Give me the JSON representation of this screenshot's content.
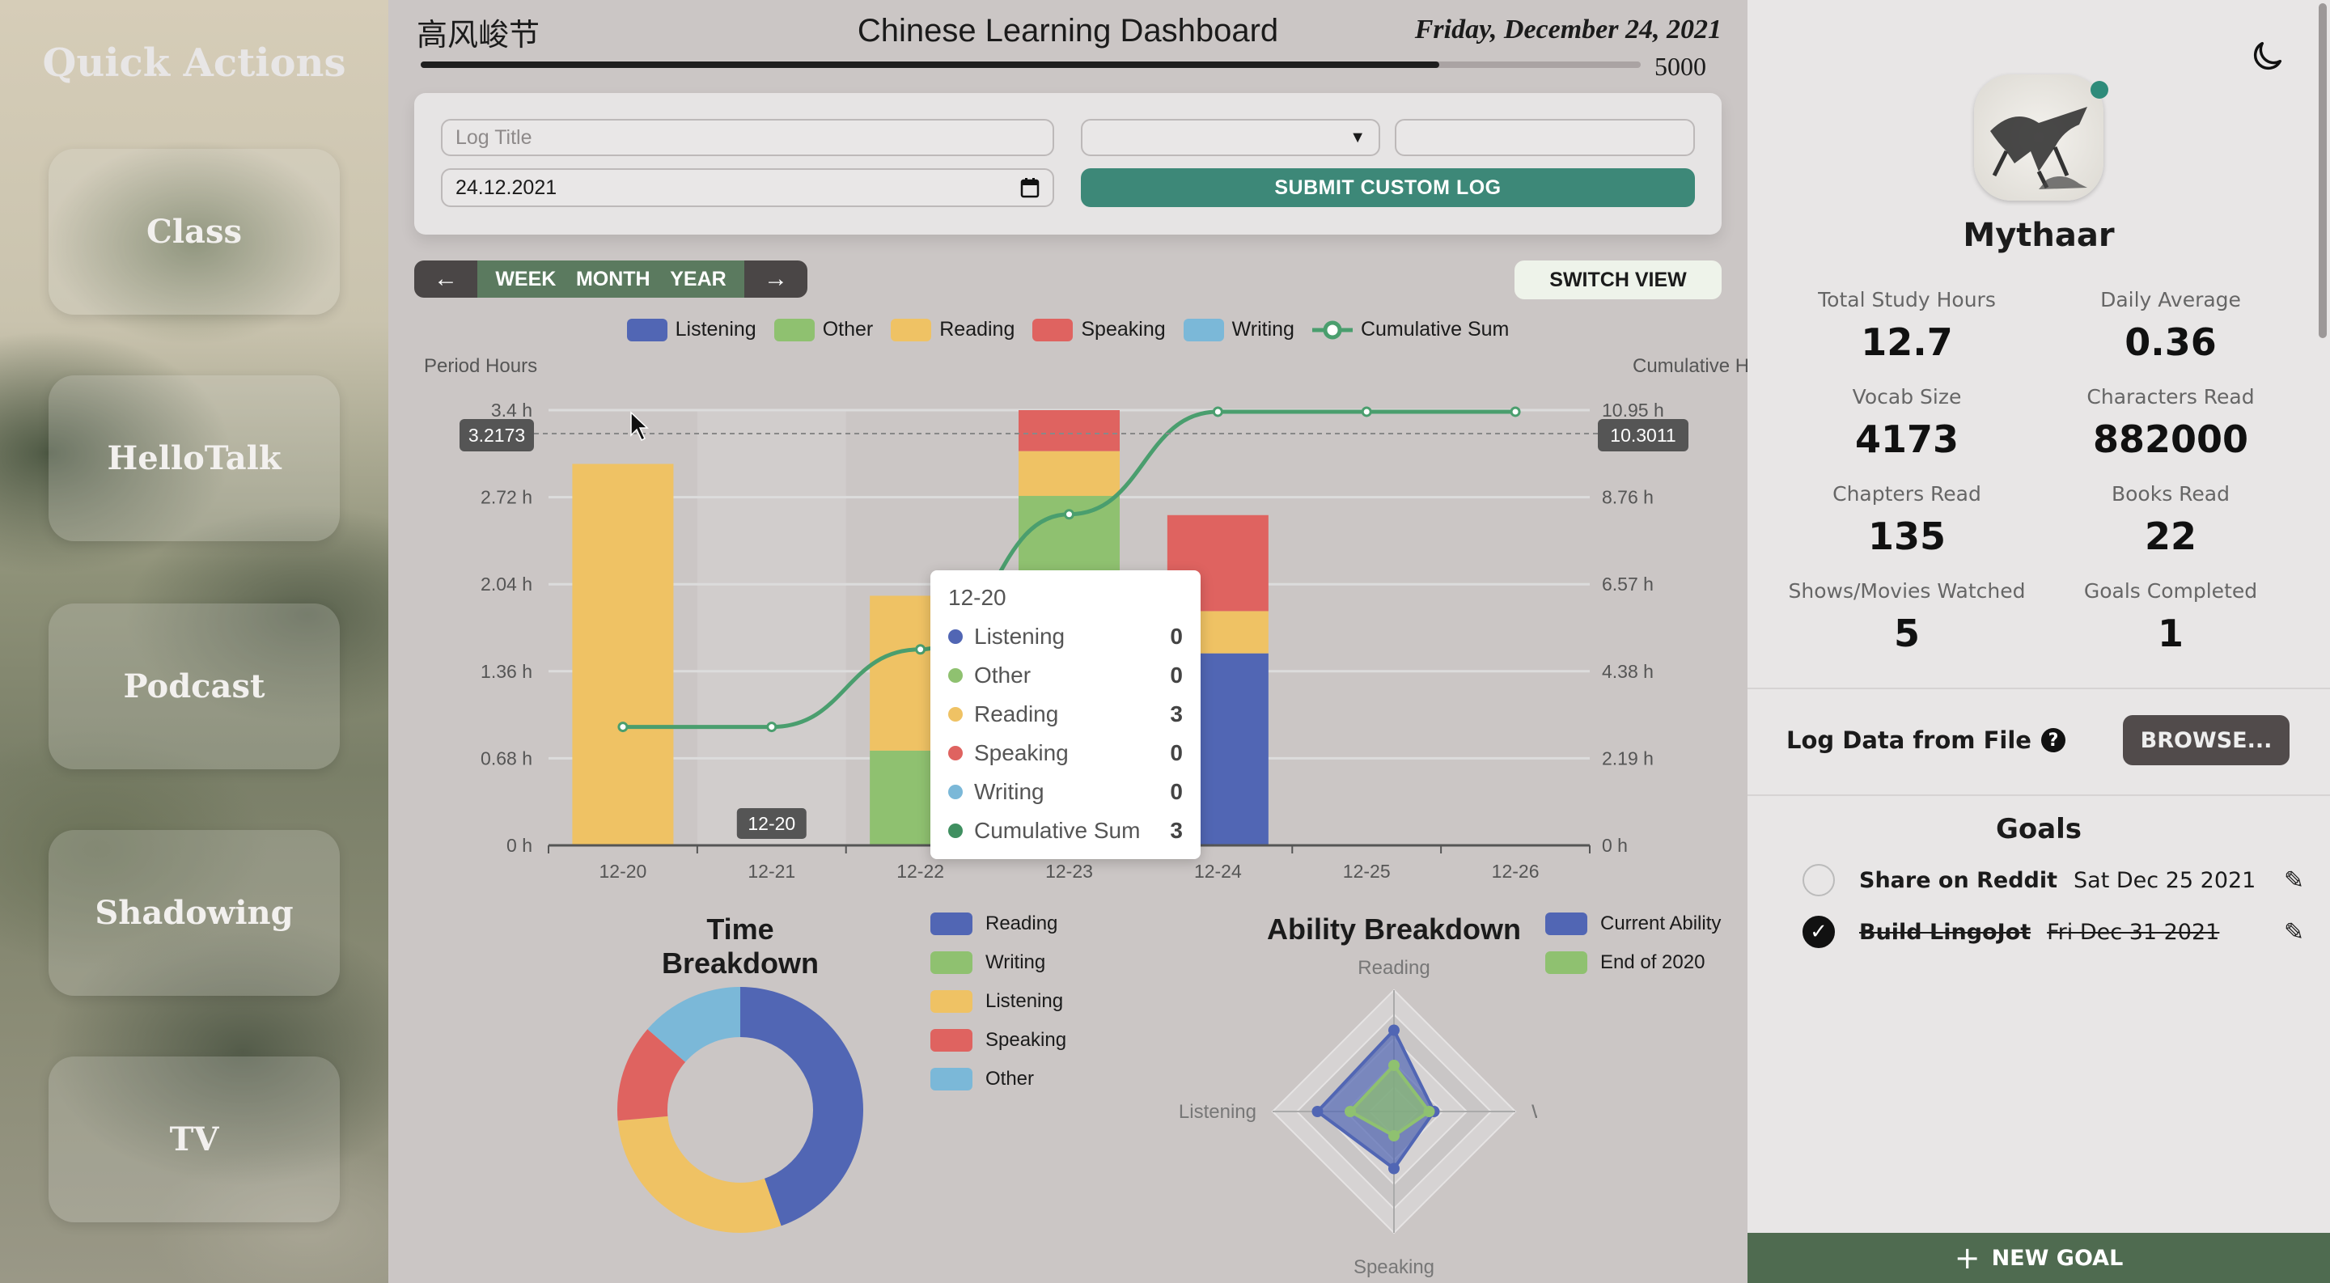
{
  "sidebar": {
    "title": "Quick Actions",
    "items": [
      {
        "label": "Class"
      },
      {
        "label": "HelloTalk"
      },
      {
        "label": "Podcast"
      },
      {
        "label": "Shadowing"
      },
      {
        "label": "TV"
      }
    ]
  },
  "header": {
    "chinese_title": "高风峻节",
    "title": "Chinese Learning Dashboard",
    "date": "Friday, December 24, 2021",
    "progress": {
      "fraction": 0.835,
      "goal_label": "5000"
    }
  },
  "form": {
    "log_title_placeholder": "Log Title",
    "select_value": "",
    "amount_value": "",
    "date_value": "24.12.2021",
    "submit_label": "SUBMIT CUSTOM LOG"
  },
  "nav": {
    "prev_icon": "arrow-left",
    "week": "WEEK",
    "month": "MONTH",
    "year": "YEAR",
    "next_icon": "arrow-right",
    "switch_view": "SWITCH VIEW"
  },
  "chart_data": [
    {
      "type": "bar",
      "stacked": true,
      "categories": [
        "12-20",
        "12-21",
        "12-22",
        "12-23",
        "12-24",
        "12-25",
        "12-26"
      ],
      "ylabel": "Period Hours",
      "y2label": "Cumulative Hours",
      "ylim": [
        0,
        3.4
      ],
      "y2lim": [
        0,
        10.95
      ],
      "yticks": [
        "0 h",
        "0.68 h",
        "1.36 h",
        "2.04 h",
        "2.72 h",
        "3.4 h"
      ],
      "y2ticks": [
        "0 h",
        "2.19 h",
        "4.38 h",
        "6.57 h",
        "8.76 h",
        "10.95 h"
      ],
      "series": [
        {
          "name": "Listening",
          "color": "#5166b4",
          "values": [
            0,
            0,
            0,
            0,
            1.5,
            0,
            0
          ]
        },
        {
          "name": "Other",
          "color": "#8fc170",
          "values": [
            0,
            0,
            0.74,
            2.73,
            0,
            0,
            0
          ]
        },
        {
          "name": "Reading",
          "color": "#efc264",
          "values": [
            2.98,
            0,
            1.21,
            0.35,
            0.33,
            0,
            0
          ]
        },
        {
          "name": "Speaking",
          "color": "#df6360",
          "values": [
            0,
            0,
            0,
            0.32,
            0.75,
            0,
            0
          ]
        },
        {
          "name": "Writing",
          "color": "#7bb8d8",
          "values": [
            0,
            0,
            0,
            0,
            0,
            0,
            0
          ]
        }
      ],
      "line": {
        "name": "Cumulative Sum",
        "color": "#4a9e6e",
        "axis": "right",
        "values": [
          2.98,
          2.98,
          4.93,
          8.33,
          10.91,
          10.91,
          10.91
        ]
      },
      "crosshair": {
        "left_value": "3.2173",
        "right_value": "10.3011",
        "x_label": "12-20"
      },
      "legend": "top",
      "tooltip": {
        "title": "12-20",
        "rows": [
          {
            "name": "Listening",
            "value": "0",
            "color": "#5166b4"
          },
          {
            "name": "Other",
            "value": "0",
            "color": "#8fc170"
          },
          {
            "name": "Reading",
            "value": "3",
            "color": "#efc264"
          },
          {
            "name": "Speaking",
            "value": "0",
            "color": "#df6360"
          },
          {
            "name": "Writing",
            "value": "0",
            "color": "#7bb8d8"
          },
          {
            "name": "Cumulative Sum",
            "value": "3",
            "color": "#3f8f60"
          }
        ]
      }
    },
    {
      "type": "pie",
      "donut": true,
      "title": "Time Breakdown",
      "legend": "right",
      "slices": [
        {
          "name": "Reading",
          "color": "#5166b4",
          "value": 44.6
        },
        {
          "name": "Writing",
          "color": "#8fc170",
          "value": 0
        },
        {
          "name": "Listening",
          "color": "#efc264",
          "value": 29.0
        },
        {
          "name": "Speaking",
          "color": "#df6360",
          "value": 12.8
        },
        {
          "name": "Other",
          "color": "#7bb8d8",
          "value": 13.6
        }
      ]
    },
    {
      "type": "radar",
      "title": "Ability Breakdown",
      "legend": "right",
      "axes": [
        "Reading",
        "Writing",
        "Speaking",
        "Listening"
      ],
      "range": [
        0,
        1
      ],
      "series": [
        {
          "name": "Current Ability",
          "color": "#5166b4",
          "values": [
            0.67,
            0.33,
            0.47,
            0.63
          ]
        },
        {
          "name": "End of 2020",
          "color": "#8fc170",
          "values": [
            0.38,
            0.29,
            0.2,
            0.36
          ]
        }
      ]
    }
  ],
  "profile": {
    "name": "Mythaar",
    "online_color": "#2e8b7a",
    "stats": [
      {
        "label": "Total Study Hours",
        "value": "12.7"
      },
      {
        "label": "Daily Average",
        "value": "0.36"
      },
      {
        "label": "Vocab Size",
        "value": "4173"
      },
      {
        "label": "Characters Read",
        "value": "882000"
      },
      {
        "label": "Chapters Read",
        "value": "135"
      },
      {
        "label": "Books Read",
        "value": "22"
      },
      {
        "label": "Shows/Movies Watched",
        "value": "5"
      },
      {
        "label": "Goals Completed",
        "value": "1"
      }
    ]
  },
  "file_log": {
    "label": "Log Data from File",
    "browse": "BROWSE..."
  },
  "goals": {
    "title": "Goals",
    "items": [
      {
        "text": "Share on Reddit",
        "date": "Sat Dec 25 2021",
        "done": false
      },
      {
        "text": "Build LingoJot",
        "date": "Fri Dec 31 2021",
        "done": true
      }
    ],
    "new_goal": "NEW GOAL"
  }
}
